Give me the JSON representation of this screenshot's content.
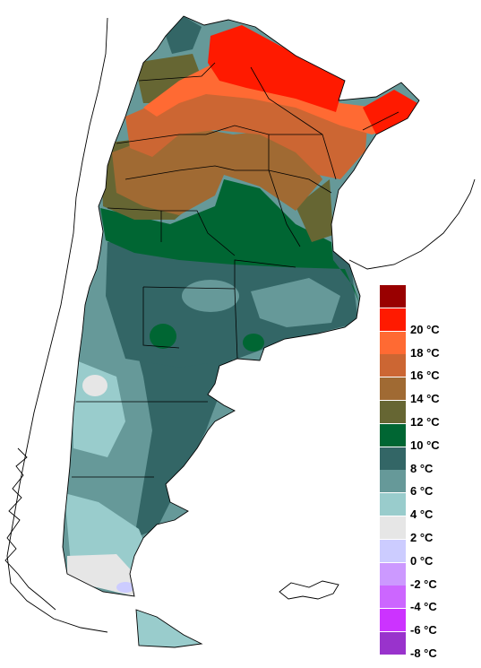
{
  "legend": {
    "items": [
      {
        "color": "#990000",
        "label": ""
      },
      {
        "color": "#ff1a00",
        "label": "20 °C"
      },
      {
        "color": "#ff6a33",
        "label": "18 °C"
      },
      {
        "color": "#cc6633",
        "label": "16 °C"
      },
      {
        "color": "#a06a33",
        "label": "14 °C"
      },
      {
        "color": "#666633",
        "label": "12 °C"
      },
      {
        "color": "#006633",
        "label": "10 °C"
      },
      {
        "color": "#336666",
        "label": "8 °C"
      },
      {
        "color": "#669999",
        "label": "6 °C"
      },
      {
        "color": "#99cccc",
        "label": "4 °C"
      },
      {
        "color": "#e6e6e6",
        "label": "2 °C"
      },
      {
        "color": "#ccccff",
        "label": "0 °C"
      },
      {
        "color": "#cc99ff",
        "label": "-2 °C"
      },
      {
        "color": "#cc66ff",
        "label": "-4 °C"
      },
      {
        "color": "#cc33ff",
        "label": "-6 °C"
      },
      {
        "color": "#9933cc",
        "label": "-8 °C"
      }
    ]
  }
}
